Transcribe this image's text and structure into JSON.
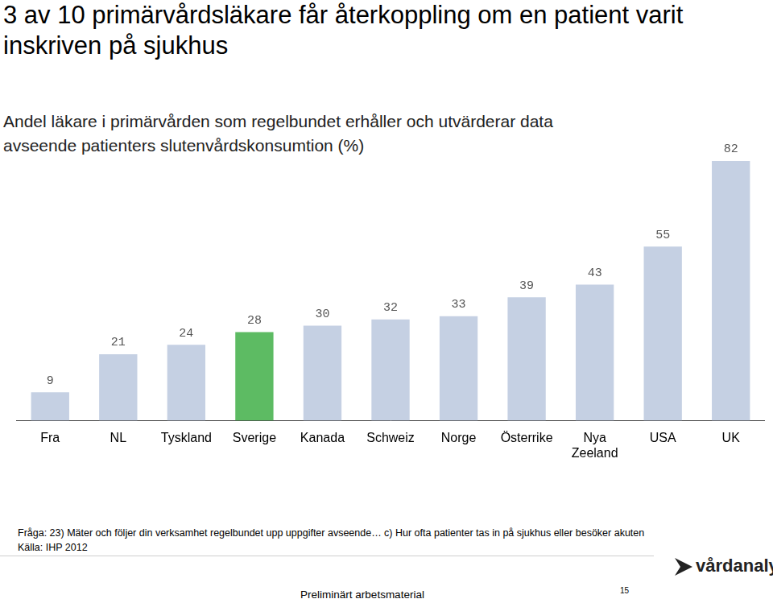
{
  "chart_data": {
    "type": "bar",
    "title": "3 av 10 primärvårdsläkare får återkoppling om en patient varit inskriven på sjukhus",
    "subtitle": "Andel läkare i primärvården som regelbundet erhåller och utvärderar data avseende patienters slutenvårdskonsumtion (%)",
    "categories": [
      "Fra",
      "NL",
      "Tyskland",
      "Sverige",
      "Kanada",
      "Schweiz",
      "Norge",
      "Österrike",
      "Nya Zeeland",
      "USA",
      "UK"
    ],
    "values": [
      9,
      21,
      24,
      28,
      30,
      32,
      33,
      39,
      43,
      55,
      82
    ],
    "colors": [
      "#c5d0e3",
      "#c5d0e3",
      "#c5d0e3",
      "#5dbb63",
      "#c5d0e3",
      "#c5d0e3",
      "#c5d0e3",
      "#c5d0e3",
      "#c5d0e3",
      "#c5d0e3",
      "#c5d0e3"
    ],
    "ylim": [
      0,
      82
    ],
    "grid": false,
    "data_labels": true,
    "tick_labels": "x",
    "annotations": {
      "question": "Fråga: 23) Mäter och följer din verksamhet regelbundet upp uppgifter avseende… c) Hur ofta patienter tas in på sjukhus eller besöker akuten",
      "source": "Källa: IHP 2012",
      "logo": "vårdanalys",
      "footer": "Preliminärt arbetsmaterial",
      "page": "15"
    }
  }
}
